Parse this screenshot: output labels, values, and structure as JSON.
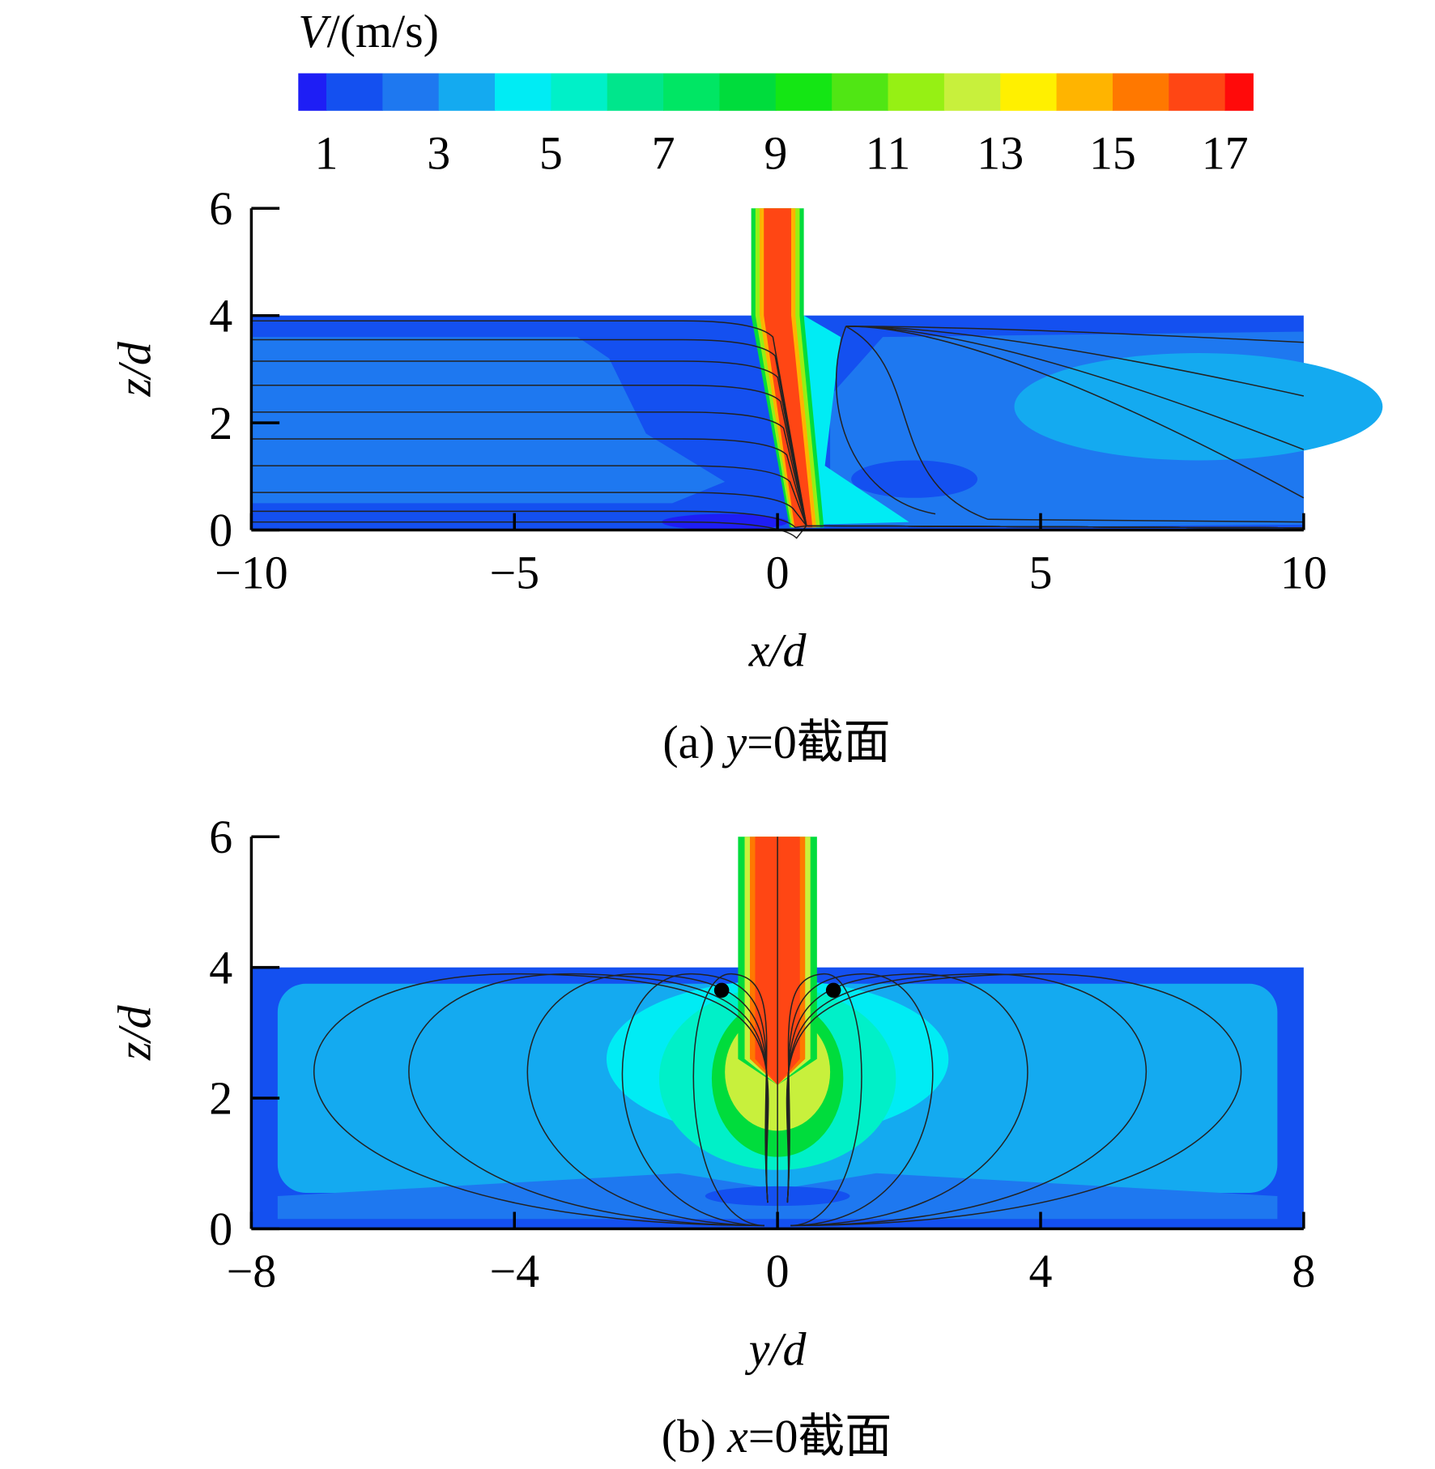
{
  "colorbar": {
    "title_symbol": "V",
    "title_unit": "/(m/s)",
    "clim": [
      0.5,
      17.5
    ],
    "levels": [
      1,
      2,
      3,
      4,
      5,
      6,
      7,
      8,
      9,
      10,
      11,
      12,
      13,
      14,
      15,
      16,
      17
    ],
    "colors": [
      "#1e1ef5",
      "#1450f0",
      "#1e78f0",
      "#14aaf0",
      "#00ecf4",
      "#00f0c8",
      "#00e68c",
      "#00e664",
      "#00dc3c",
      "#14e614",
      "#50e614",
      "#96f014",
      "#c8f03c",
      "#fff000",
      "#ffb400",
      "#ff7800",
      "#ff4614",
      "#ff0a0a"
    ],
    "ticks": [
      1,
      3,
      5,
      7,
      9,
      11,
      13,
      15,
      17
    ]
  },
  "chart_data": [
    {
      "type": "contour",
      "caption_label": "(a)",
      "caption_var": "y",
      "caption_rest": "=0截面",
      "xlabel": "x/d",
      "ylabel": "z/d",
      "xlim": [
        -10,
        10
      ],
      "ylim": [
        0,
        6
      ],
      "xticks": [
        {
          "value": -10,
          "label": "−10"
        },
        {
          "value": -5,
          "label": "−5"
        },
        0,
        5,
        10
      ],
      "yticks": [
        0,
        2,
        4,
        6
      ]
    },
    {
      "type": "contour",
      "caption_label": "(b)",
      "caption_var": "x",
      "caption_rest": "=0截面",
      "xlabel": "y/d",
      "ylabel": "z/d",
      "xlim": [
        -8,
        8
      ],
      "ylim": [
        0,
        6
      ],
      "xticks": [
        {
          "value": -8,
          "label": "−8"
        },
        {
          "value": -4,
          "label": "−4"
        },
        0,
        4,
        8
      ],
      "yticks": [
        0,
        2,
        4,
        6
      ]
    }
  ]
}
